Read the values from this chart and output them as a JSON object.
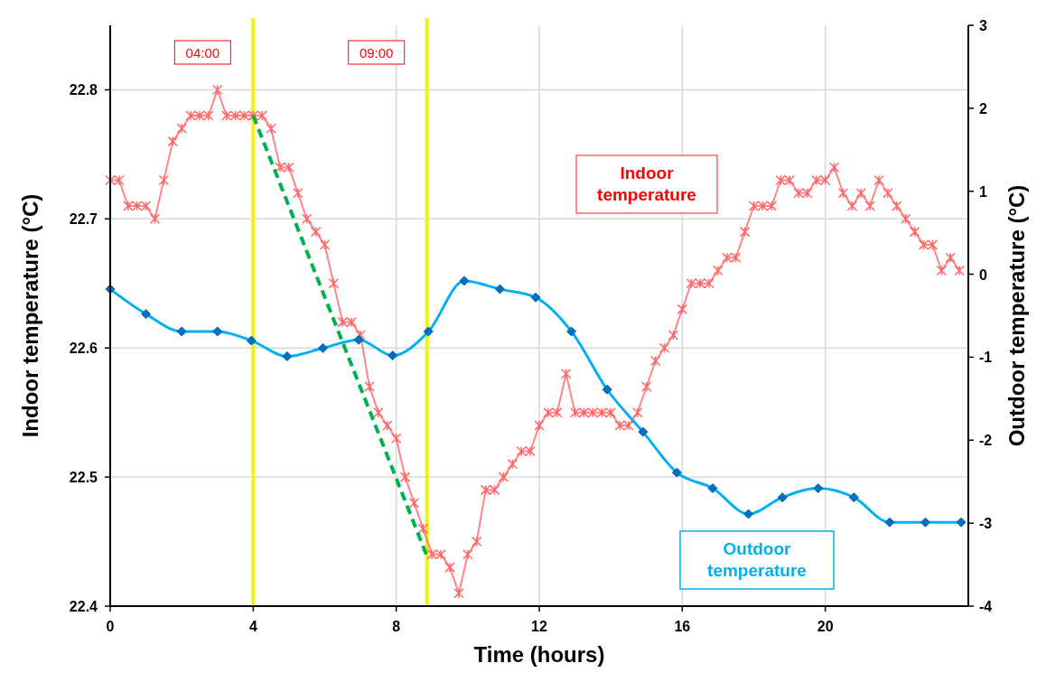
{
  "chart_data": {
    "type": "line",
    "xlabel": "Time (hours)",
    "ylabel": "Indoor temperature  (°C)",
    "y2label": "Outdoor temperature  (°C)",
    "xlim": [
      0,
      24
    ],
    "xticks": [
      0,
      4,
      8,
      12,
      16,
      20
    ],
    "ylim": [
      22.4,
      22.85
    ],
    "yticks": [
      22.4,
      22.5,
      22.6,
      22.7,
      22.8
    ],
    "y2lim": [
      -4,
      3
    ],
    "y2ticks": [
      -4,
      -3,
      -2,
      -1,
      0,
      1,
      2,
      3
    ],
    "grid": true,
    "series": [
      {
        "name": "Indoor temperature",
        "color": "#ff6666",
        "marker": "cross",
        "x": [
          0,
          0.25,
          0.5,
          0.75,
          1,
          1.25,
          1.5,
          1.75,
          2,
          2.25,
          2.5,
          2.75,
          3,
          3.25,
          3.5,
          3.75,
          4,
          4.25,
          4.5,
          4.75,
          5,
          5.25,
          5.5,
          5.75,
          6,
          6.25,
          6.5,
          6.75,
          7,
          7.25,
          7.5,
          7.75,
          8,
          8.25,
          8.5,
          8.75,
          9,
          9.25,
          9.5,
          9.75,
          10,
          10.25,
          10.5,
          10.75,
          11,
          11.25,
          11.5,
          11.75,
          12,
          12.25,
          12.5,
          12.75,
          13,
          13.25,
          13.5,
          13.75,
          14,
          14.25,
          14.5,
          14.75,
          15,
          15.25,
          15.5,
          15.75,
          16,
          16.25,
          16.5,
          16.75,
          17,
          17.25,
          17.5,
          17.75,
          18,
          18.25,
          18.5,
          18.75,
          19,
          19.25,
          19.5,
          19.75,
          20,
          20.25,
          20.5,
          20.75,
          21,
          21.25,
          21.5,
          21.75,
          22,
          22.25,
          22.5,
          22.75,
          23,
          23.25,
          23.5,
          23.75
        ],
        "values": [
          22.73,
          22.73,
          22.71,
          22.71,
          22.71,
          22.7,
          22.73,
          22.76,
          22.77,
          22.78,
          22.78,
          22.78,
          22.8,
          22.78,
          22.78,
          22.78,
          22.78,
          22.78,
          22.77,
          22.74,
          22.74,
          22.72,
          22.7,
          22.69,
          22.68,
          22.65,
          22.62,
          22.62,
          22.61,
          22.57,
          22.55,
          22.54,
          22.53,
          22.5,
          22.48,
          22.46,
          22.44,
          22.44,
          22.43,
          22.41,
          22.44,
          22.45,
          22.49,
          22.49,
          22.5,
          22.51,
          22.52,
          22.52,
          22.54,
          22.55,
          22.55,
          22.58,
          22.55,
          22.55,
          22.55,
          22.55,
          22.55,
          22.54,
          22.54,
          22.55,
          22.57,
          22.59,
          22.6,
          22.61,
          22.63,
          22.65,
          22.65,
          22.65,
          22.66,
          22.67,
          22.67,
          22.69,
          22.71,
          22.71,
          22.71,
          22.73,
          22.73,
          22.72,
          22.72,
          22.73,
          22.73,
          22.74,
          22.72,
          22.71,
          22.72,
          22.71,
          22.73,
          22.72,
          22.71,
          22.7,
          22.69,
          22.68,
          22.68,
          22.66,
          22.67,
          22.66
        ]
      },
      {
        "name": "Outdoor temperature",
        "color": "#00b0f0",
        "marker": "diamond",
        "axis": "y2",
        "x": [
          0,
          1,
          2,
          3,
          3.95,
          4.95,
          5.95,
          6.95,
          7.9,
          8.9,
          9.9,
          10.9,
          11.9,
          12.9,
          13.9,
          14.9,
          15.85,
          16.85,
          17.85,
          18.8,
          19.8,
          20.8,
          21.8,
          22.8,
          23.8
        ],
        "values": [
          -0.18,
          -0.48,
          -0.69,
          -0.69,
          -0.8,
          -0.99,
          -0.89,
          -0.79,
          -0.98,
          -0.69,
          -0.08,
          -0.18,
          -0.28,
          -0.69,
          -1.39,
          -1.9,
          -2.39,
          -2.58,
          -2.89,
          -2.69,
          -2.58,
          -2.69,
          -2.99,
          -2.99,
          -2.99
        ]
      },
      {
        "type": "line",
        "color": "#00b050",
        "line_style": "dashed",
        "marker": "none",
        "x": [
          4,
          8.84
        ],
        "values": [
          22.78,
          22.44
        ]
      }
    ],
    "ref_lines": [
      {
        "axis": "x",
        "value": 4,
        "label": "04:00",
        "color": "#f2f20c"
      },
      {
        "axis": "x",
        "value": 8.86,
        "label": "09:00",
        "color": "#f2f20c"
      }
    ]
  }
}
